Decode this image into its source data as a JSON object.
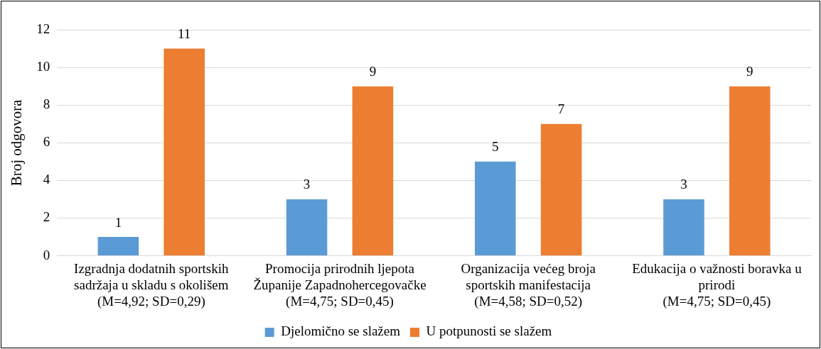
{
  "chart_data": {
    "type": "bar",
    "ylabel": "Broj odgovora",
    "categories": [
      "Izgradnja dodatnih sportskih sadržaja u skladu s okolišem (M=4,92; SD=0,29)",
      "Promocija prirodnih ljepota Županije Zapadnohercegovačke (M=4,75; SD=0,45)",
      "Organizacija većeg broja sportskih manifestacija (M=4,58; SD=0,52)",
      "Edukacija o važnosti boravka u prirodi (M=4,75; SD=0,45)"
    ],
    "series": [
      {
        "name": "Djelomično se slažem",
        "color": "#5b9bd5",
        "values": [
          1,
          3,
          5,
          3
        ]
      },
      {
        "name": "U potpunosti se slažem",
        "color": "#ed7d31",
        "values": [
          11,
          9,
          7,
          9
        ]
      }
    ],
    "ylim": [
      0,
      12
    ],
    "yticks": [
      0,
      2,
      4,
      6,
      8,
      10,
      12
    ],
    "grid": "y",
    "legend": "bottom",
    "data_labels": true
  }
}
